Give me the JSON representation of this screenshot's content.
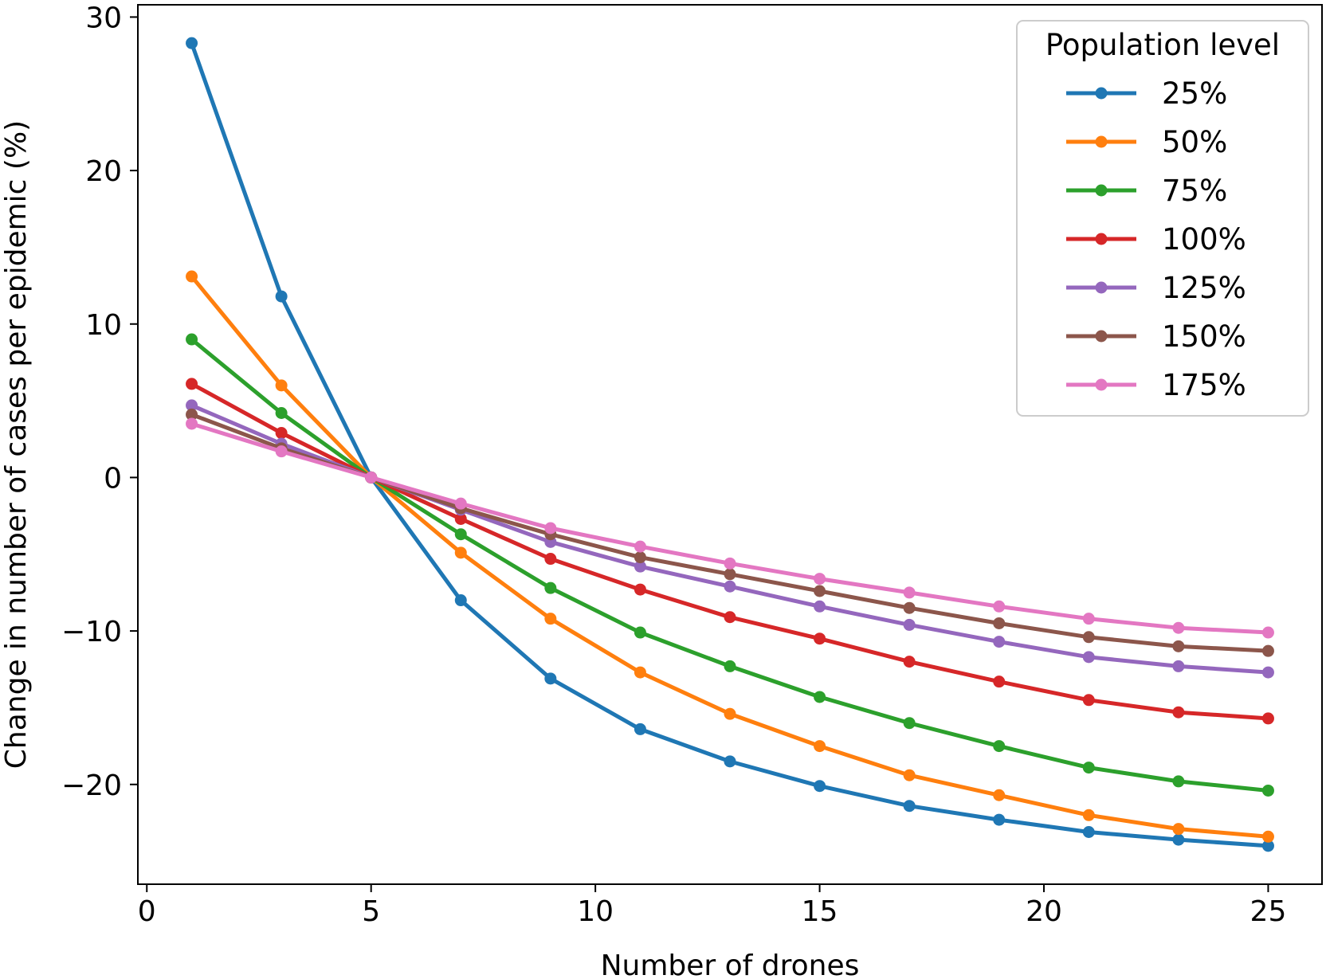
{
  "chart_data": {
    "type": "line",
    "title": "",
    "xlabel": "Number of drones",
    "ylabel": "Change in number of cases per epidemic (%)",
    "xlim": [
      -0.2,
      26.2
    ],
    "ylim": [
      -26.5,
      30.8
    ],
    "x_ticks": [
      0,
      5,
      10,
      15,
      20,
      25
    ],
    "x_tick_labels": [
      "0",
      "5",
      "10",
      "15",
      "20",
      "25"
    ],
    "y_ticks": [
      -20,
      -10,
      0,
      10,
      20,
      30
    ],
    "y_tick_labels": [
      "−20",
      "−10",
      "0",
      "10",
      "20",
      "30"
    ],
    "grid": false,
    "legend": {
      "title": "Population level",
      "position": "top-right"
    },
    "x": [
      1,
      3,
      5,
      7,
      9,
      11,
      13,
      15,
      17,
      19,
      21,
      23,
      25
    ],
    "series": [
      {
        "name": "25%",
        "color": "#1f77b4",
        "values": [
          28.3,
          11.8,
          0,
          -8.0,
          -13.1,
          -16.4,
          -18.5,
          -20.1,
          -21.4,
          -22.3,
          -23.1,
          -23.6,
          -24.0
        ]
      },
      {
        "name": "50%",
        "color": "#ff7f0e",
        "values": [
          13.1,
          6.0,
          0,
          -4.9,
          -9.2,
          -12.7,
          -15.4,
          -17.5,
          -19.4,
          -20.7,
          -22.0,
          -22.9,
          -23.4
        ]
      },
      {
        "name": "75%",
        "color": "#2ca02c",
        "values": [
          9.0,
          4.2,
          0,
          -3.7,
          -7.2,
          -10.1,
          -12.3,
          -14.3,
          -16.0,
          -17.5,
          -18.9,
          -19.8,
          -20.4
        ]
      },
      {
        "name": "100%",
        "color": "#d62728",
        "values": [
          6.1,
          2.9,
          0,
          -2.7,
          -5.3,
          -7.3,
          -9.1,
          -10.5,
          -12.0,
          -13.3,
          -14.5,
          -15.3,
          -15.7
        ]
      },
      {
        "name": "125%",
        "color": "#9467bd",
        "values": [
          4.7,
          2.2,
          0,
          -2.1,
          -4.2,
          -5.8,
          -7.1,
          -8.4,
          -9.6,
          -10.7,
          -11.7,
          -12.3,
          -12.7
        ]
      },
      {
        "name": "150%",
        "color": "#8c564b",
        "values": [
          4.1,
          1.9,
          0,
          -2.0,
          -3.7,
          -5.2,
          -6.3,
          -7.4,
          -8.5,
          -9.5,
          -10.4,
          -11.0,
          -11.3
        ]
      },
      {
        "name": "175%",
        "color": "#e377c2",
        "values": [
          3.5,
          1.7,
          0,
          -1.7,
          -3.3,
          -4.5,
          -5.6,
          -6.6,
          -7.5,
          -8.4,
          -9.2,
          -9.8,
          -10.1
        ]
      }
    ]
  }
}
